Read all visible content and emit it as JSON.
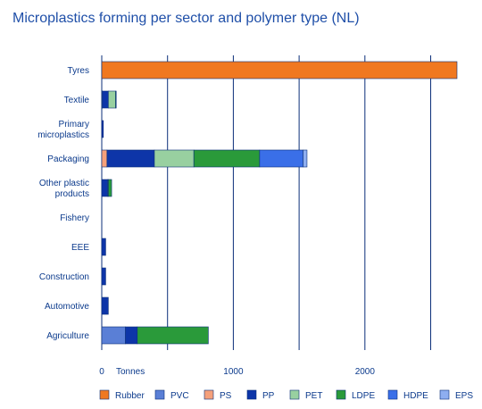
{
  "title": "Microplastics forming per sector and polymer type (NL)",
  "chart_data": {
    "type": "bar",
    "orientation": "horizontal",
    "stacked": true,
    "title": "Microplastics forming per sector and polymer type (NL)",
    "xlabel": "Tonnes",
    "xlim": [
      0,
      2700
    ],
    "xticks": [
      0,
      500,
      1000,
      1500,
      2000,
      2500
    ],
    "xtick_labels": [
      "0",
      "",
      "1000",
      "",
      "2000",
      ""
    ],
    "grid": "vertical",
    "legend_position": "bottom",
    "categories": [
      [
        "Tyres"
      ],
      [
        "Textile"
      ],
      [
        "Primary",
        "microplastics"
      ],
      [
        "Packaging"
      ],
      [
        "Other plastic",
        "products"
      ],
      [
        "Fishery"
      ],
      [
        "EEE"
      ],
      [
        "Construction"
      ],
      [
        "Automotive"
      ],
      [
        "Agriculture"
      ]
    ],
    "series": [
      {
        "name": "Rubber",
        "color": "#f07820",
        "values": [
          2700,
          0,
          0,
          0,
          0,
          0,
          0,
          0,
          0,
          0
        ]
      },
      {
        "name": "PVC",
        "color": "#5a7fd6",
        "values": [
          0,
          5,
          0,
          0,
          0,
          0,
          0,
          0,
          0,
          180
        ]
      },
      {
        "name": "PS",
        "color": "#f5a07a",
        "values": [
          0,
          0,
          0,
          40,
          0,
          0,
          0,
          0,
          0,
          0
        ]
      },
      {
        "name": "PP",
        "color": "#0d35a8",
        "values": [
          0,
          45,
          12,
          360,
          45,
          0,
          30,
          30,
          50,
          90
        ]
      },
      {
        "name": "PET",
        "color": "#98d0a0",
        "values": [
          0,
          55,
          0,
          300,
          5,
          0,
          0,
          0,
          0,
          0
        ]
      },
      {
        "name": "LDPE",
        "color": "#2a9a3a",
        "values": [
          0,
          5,
          0,
          500,
          25,
          0,
          0,
          0,
          0,
          540
        ]
      },
      {
        "name": "HDPE",
        "color": "#3a6fe8",
        "values": [
          0,
          0,
          0,
          330,
          0,
          0,
          0,
          0,
          0,
          0
        ]
      },
      {
        "name": "EPS",
        "color": "#8eaef0",
        "values": [
          0,
          0,
          0,
          30,
          0,
          0,
          0,
          0,
          0,
          0
        ]
      }
    ]
  }
}
